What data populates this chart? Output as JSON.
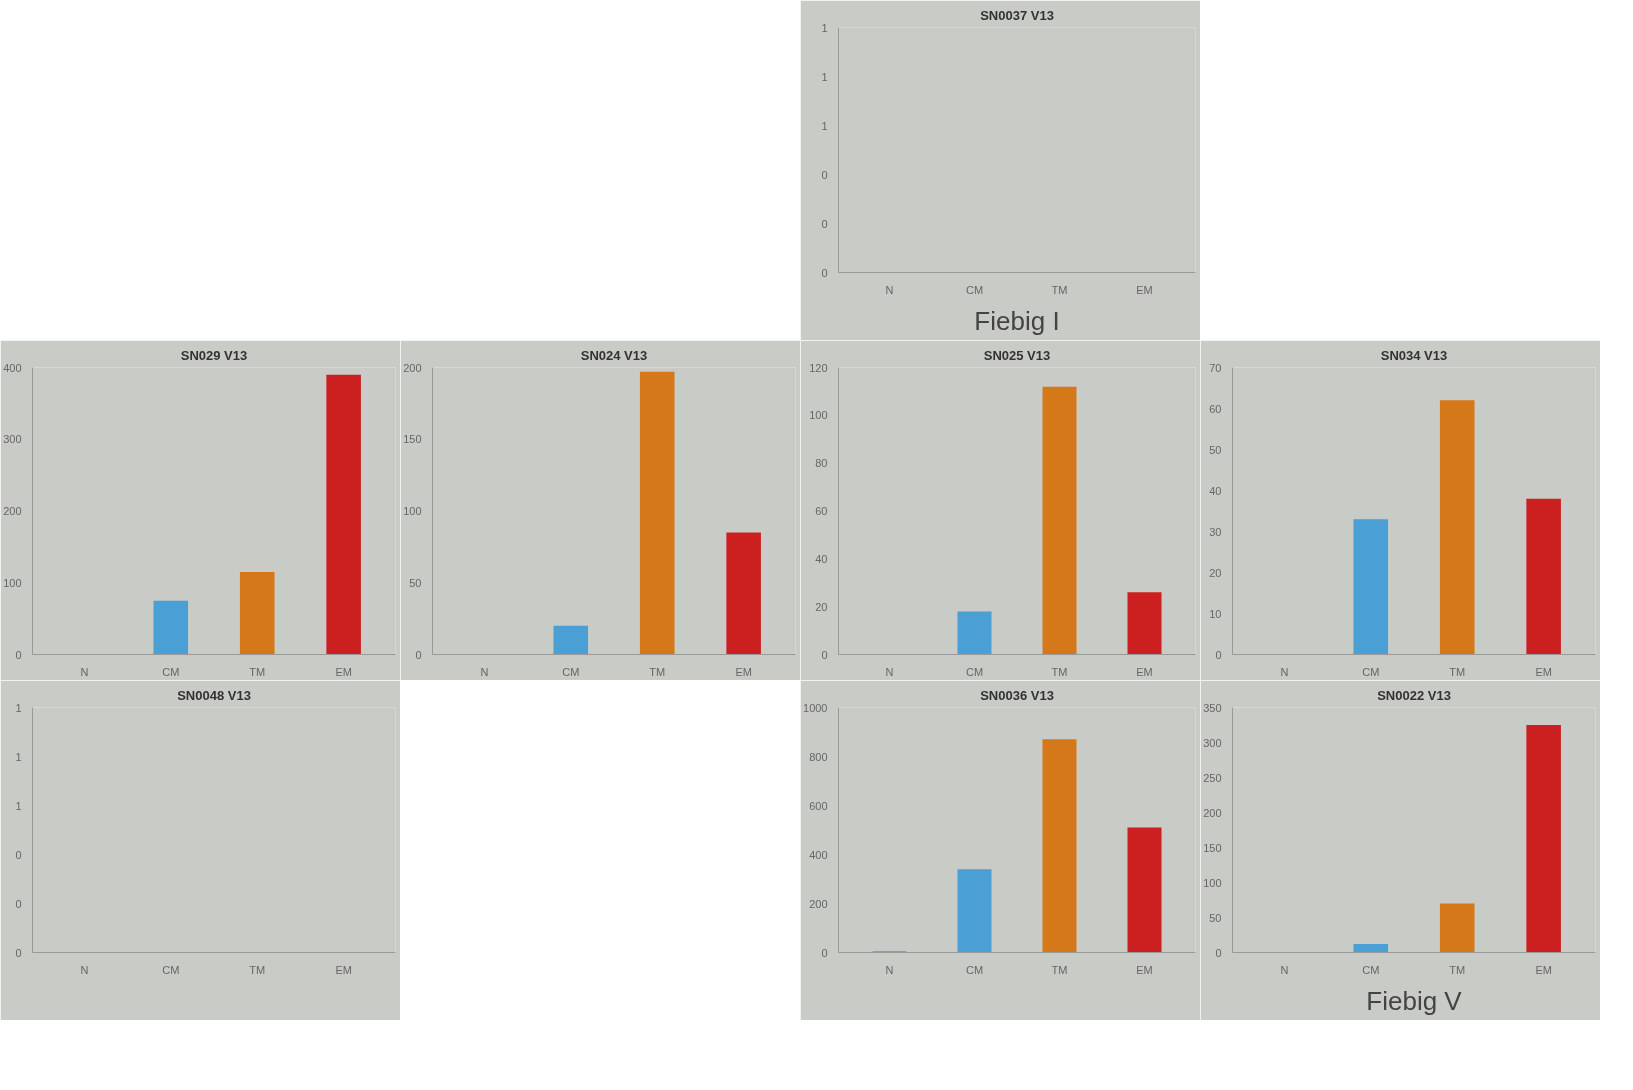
{
  "chart_data": [
    {
      "type": "bar",
      "title": "SN0037 V13",
      "categories": [
        "N",
        "CM",
        "TM",
        "EM"
      ],
      "values": [
        0,
        0,
        0,
        0
      ],
      "colors": [
        "#4a9fd4",
        "#4a9fd4",
        "#d4781a",
        "#cc2020"
      ],
      "ylim": [
        0,
        1
      ],
      "yticks": [
        {
          "value": 0,
          "label": "0"
        },
        {
          "value": 0.2,
          "label": "0"
        },
        {
          "value": 0.4,
          "label": "0"
        },
        {
          "value": 0.6,
          "label": "1"
        },
        {
          "value": 0.8,
          "label": "1"
        },
        {
          "value": 1,
          "label": "1"
        }
      ],
      "grid": false,
      "annotations": [
        "Fiebig I"
      ]
    },
    {
      "type": "bar",
      "title": "SN029 V13",
      "categories": [
        "N",
        "CM",
        "TM",
        "EM"
      ],
      "values": [
        0,
        75,
        115,
        390
      ],
      "colors": [
        "#4a9fd4",
        "#4a9fd4",
        "#d4781a",
        "#cc2020"
      ],
      "ylim": [
        0,
        400
      ],
      "yticks": [
        0,
        100,
        200,
        300,
        400
      ],
      "grid": false
    },
    {
      "type": "bar",
      "title": "SN024 V13",
      "categories": [
        "N",
        "CM",
        "TM",
        "EM"
      ],
      "values": [
        0,
        20,
        197,
        85
      ],
      "colors": [
        "#4a9fd4",
        "#4a9fd4",
        "#d4781a",
        "#cc2020"
      ],
      "ylim": [
        0,
        200
      ],
      "yticks": [
        0,
        50,
        100,
        150,
        200
      ],
      "grid": false
    },
    {
      "type": "bar",
      "title": "SN025 V13",
      "categories": [
        "N",
        "CM",
        "TM",
        "EM"
      ],
      "values": [
        0,
        18,
        112,
        26
      ],
      "colors": [
        "#4a9fd4",
        "#4a9fd4",
        "#d4781a",
        "#cc2020"
      ],
      "ylim": [
        0,
        120
      ],
      "yticks": [
        0,
        20,
        40,
        60,
        80,
        100,
        120
      ],
      "grid": false
    },
    {
      "type": "bar",
      "title": "SN034 V13",
      "categories": [
        "N",
        "CM",
        "TM",
        "EM"
      ],
      "values": [
        0,
        33,
        62,
        38
      ],
      "colors": [
        "#4a9fd4",
        "#4a9fd4",
        "#d4781a",
        "#cc2020"
      ],
      "ylim": [
        0,
        70
      ],
      "yticks": [
        0,
        10,
        20,
        30,
        40,
        50,
        60,
        70
      ],
      "grid": false
    },
    {
      "type": "bar",
      "title": "SN0048 V13",
      "categories": [
        "N",
        "CM",
        "TM",
        "EM"
      ],
      "values": [
        0,
        0,
        0,
        0
      ],
      "colors": [
        "#4a9fd4",
        "#4a9fd4",
        "#d4781a",
        "#cc2020"
      ],
      "ylim": [
        0,
        1
      ],
      "yticks": [
        {
          "value": 0,
          "label": "0"
        },
        {
          "value": 0.2,
          "label": "0"
        },
        {
          "value": 0.4,
          "label": "0"
        },
        {
          "value": 0.6,
          "label": "1"
        },
        {
          "value": 0.8,
          "label": "1"
        },
        {
          "value": 1,
          "label": "1"
        }
      ],
      "grid": false
    },
    {
      "type": "bar",
      "title": "SN0036 V13",
      "categories": [
        "N",
        "CM",
        "TM",
        "EM"
      ],
      "values": [
        5,
        340,
        870,
        510
      ],
      "colors": [
        "#4a9fd4",
        "#4a9fd4",
        "#d4781a",
        "#cc2020"
      ],
      "ylim": [
        0,
        1000
      ],
      "yticks": [
        0,
        200,
        400,
        600,
        800,
        1000
      ],
      "grid": false
    },
    {
      "type": "bar",
      "title": "SN0022 V13",
      "categories": [
        "N",
        "CM",
        "TM",
        "EM"
      ],
      "values": [
        0,
        12,
        70,
        325
      ],
      "colors": [
        "#4a9fd4",
        "#4a9fd4",
        "#d4781a",
        "#cc2020"
      ],
      "ylim": [
        0,
        350
      ],
      "yticks": [
        0,
        50,
        100,
        150,
        200,
        250,
        300,
        350
      ],
      "grid": false,
      "annotations": [
        "Fiebig V"
      ]
    }
  ]
}
